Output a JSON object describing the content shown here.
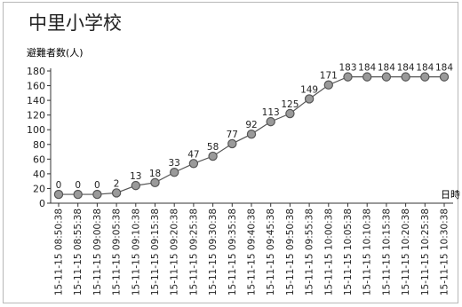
{
  "page": {
    "title": "中里小学校"
  },
  "colors": {
    "line": "#555555",
    "marker_fill": "#9a9a9a",
    "marker_stroke": "#555555",
    "axis": "#333333",
    "text": "#222222",
    "grid": "none"
  },
  "chart_data": {
    "type": "line",
    "title": "中里小学校",
    "ylabel": "避難者数(人)",
    "xlabel": "日時",
    "ylim": [
      0,
      180
    ],
    "yticks": [
      0,
      20,
      40,
      60,
      80,
      100,
      120,
      140,
      160,
      180
    ],
    "grid": false,
    "legend": "none",
    "point_labels": true,
    "categories": [
      "15-11-15 08:50:38",
      "15-11-15 08:55:38",
      "15-11-15 09:00:38",
      "15-11-15 09:05:38",
      "15-11-15 09:10:38",
      "15-11-15 09:15:38",
      "15-11-15 09:20:38",
      "15-11-15 09:25:38",
      "15-11-15 09:30:38",
      "15-11-15 09:35:38",
      "15-11-15 09:40:38",
      "15-11-15 09:45:38",
      "15-11-15 09:50:38",
      "15-11-15 09:55:38",
      "15-11-15 10:00:38",
      "15-11-15 10:05:38",
      "15-11-15 10:10:38",
      "15-11-15 10:15:38",
      "15-11-15 10:20:38",
      "15-11-15 10:25:38",
      "15-11-15 10:30:38"
    ],
    "series": [
      {
        "values": [
          0,
          0,
          0,
          2,
          13,
          18,
          33,
          47,
          58,
          77,
          92,
          113,
          125,
          149,
          171,
          183,
          184,
          184,
          184,
          184,
          184
        ],
        "plotted": [
          12,
          12,
          12,
          14,
          24,
          28,
          42,
          54,
          64,
          81,
          94,
          111,
          122,
          142,
          161,
          172,
          172,
          172,
          172,
          172,
          172
        ]
      }
    ]
  }
}
